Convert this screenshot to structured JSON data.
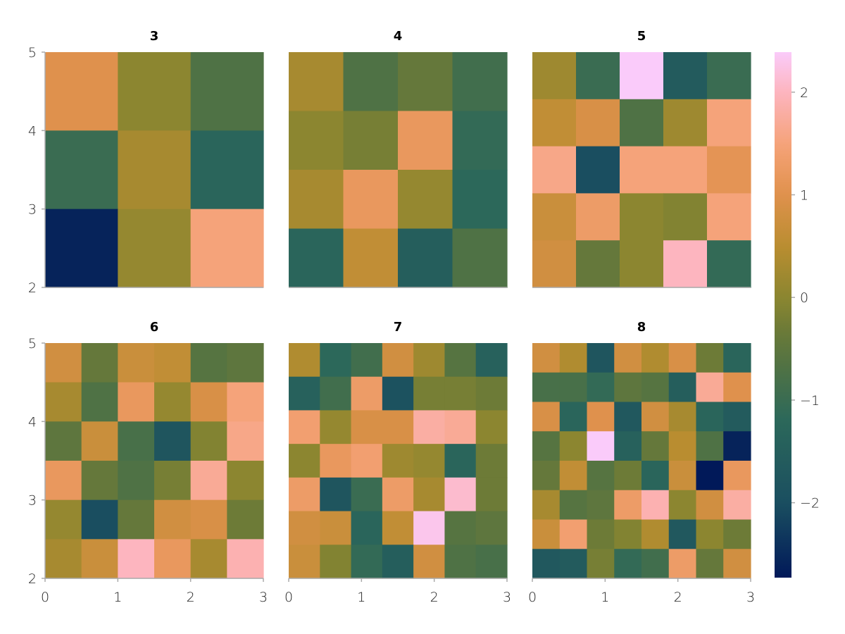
{
  "chart_data": {
    "type": "heatmap",
    "xlim": [
      0,
      3
    ],
    "ylim": [
      2,
      5
    ],
    "x_ticks": [
      "0",
      "1",
      "2",
      "3"
    ],
    "y_ticks": [
      "2",
      "3",
      "4",
      "5"
    ],
    "row_order": "top-to-bottom (y high to low)",
    "colorbar": {
      "range": [
        -2.73,
        2.39
      ],
      "ticks": [
        "2",
        "1",
        "0",
        "-1",
        "-2"
      ],
      "tick_values": [
        2,
        1,
        0,
        -1,
        -2
      ]
    },
    "panels": [
      {
        "title": "3",
        "values": [
          [
            1.0,
            0.0,
            -0.7
          ],
          [
            -1.0,
            0.3,
            -1.3
          ],
          [
            -2.6,
            0.1,
            1.5
          ]
        ]
      },
      {
        "title": "4",
        "values": [
          [
            0.3,
            -0.7,
            -0.4,
            -0.9
          ],
          [
            0.0,
            -0.2,
            1.2,
            -1.1
          ],
          [
            0.3,
            1.2,
            0.1,
            -1.2
          ],
          [
            -1.3,
            0.6,
            -1.5,
            -0.7
          ]
        ]
      },
      {
        "title": "5",
        "values": [
          [
            0.2,
            -1.0,
            2.4,
            -1.6,
            -1.0
          ],
          [
            0.6,
            0.9,
            -0.7,
            0.2,
            1.5
          ],
          [
            1.6,
            -2.0,
            1.5,
            1.5,
            1.1
          ],
          [
            0.7,
            1.3,
            0.0,
            -0.1,
            1.5
          ],
          [
            0.8,
            -0.4,
            0.0,
            2.0,
            -1.1
          ]
        ]
      },
      {
        "title": "6",
        "values": [
          [
            0.8,
            -0.4,
            0.7,
            0.6,
            -0.6,
            -0.5
          ],
          [
            0.3,
            -0.7,
            1.2,
            0.1,
            0.9,
            1.5
          ],
          [
            -0.5,
            0.7,
            -0.8,
            -1.8,
            -0.1,
            1.6
          ],
          [
            1.2,
            -0.4,
            -0.7,
            -0.2,
            1.7,
            0.0
          ],
          [
            0.1,
            -2.0,
            -0.4,
            0.8,
            0.9,
            -0.3
          ],
          [
            0.3,
            0.7,
            2.0,
            1.2,
            0.3,
            1.9
          ]
        ]
      },
      {
        "title": "7",
        "values": [
          [
            0.4,
            -1.2,
            -0.9,
            0.8,
            0.2,
            -0.6,
            -1.4
          ],
          [
            -1.4,
            -0.9,
            1.3,
            -1.9,
            -0.2,
            -0.2,
            -0.3
          ],
          [
            1.4,
            0.1,
            0.9,
            0.9,
            1.8,
            1.7,
            0.0
          ],
          [
            0.0,
            1.2,
            1.4,
            0.2,
            0.1,
            -1.3,
            -0.3
          ],
          [
            1.3,
            -1.8,
            -1.0,
            1.3,
            0.3,
            2.1,
            -0.3
          ],
          [
            0.8,
            0.7,
            -1.3,
            0.6,
            2.3,
            -0.6,
            -0.5
          ],
          [
            0.7,
            -0.1,
            -1.1,
            -1.5,
            0.8,
            -0.7,
            -0.8
          ]
        ]
      },
      {
        "title": "8",
        "values": [
          [
            0.8,
            0.4,
            -1.8,
            0.8,
            0.4,
            0.9,
            -0.3,
            -1.3
          ],
          [
            -0.8,
            -0.8,
            -1.1,
            -0.5,
            -0.6,
            -1.5,
            1.7,
            1.0
          ],
          [
            0.9,
            -1.3,
            1.0,
            -1.7,
            0.8,
            0.3,
            -1.3,
            -1.6
          ],
          [
            -0.6,
            0.0,
            2.4,
            -1.4,
            -0.4,
            0.5,
            -0.7,
            -2.6
          ],
          [
            -0.4,
            0.6,
            -0.6,
            -0.3,
            -1.3,
            0.7,
            -2.8,
            1.2
          ],
          [
            0.3,
            -0.6,
            -0.5,
            1.3,
            1.9,
            0.0,
            0.8,
            1.8
          ],
          [
            0.7,
            1.4,
            -0.3,
            -0.1,
            0.4,
            -1.7,
            0.0,
            -0.3
          ],
          [
            -1.7,
            -1.6,
            -0.2,
            -1.1,
            -0.9,
            1.3,
            -0.4,
            0.8
          ]
        ]
      }
    ]
  }
}
